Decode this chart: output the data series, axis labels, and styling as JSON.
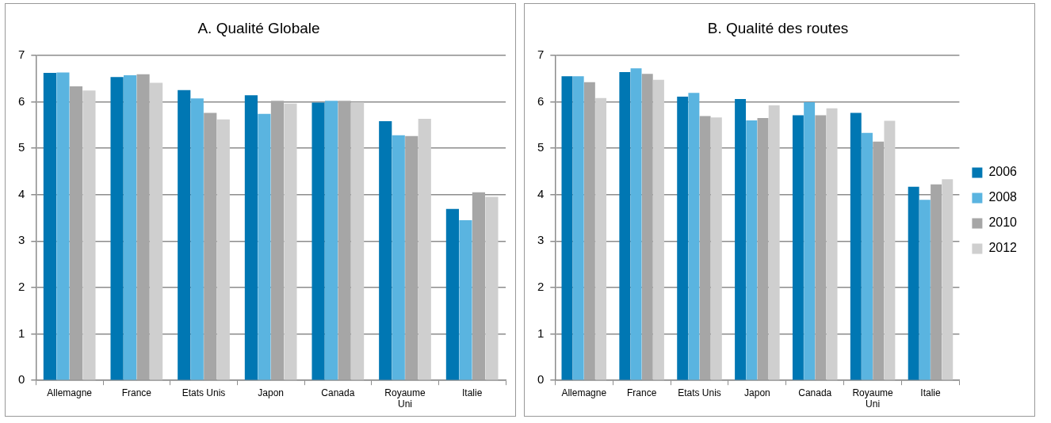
{
  "chart_data": [
    {
      "type": "bar",
      "title": "A. Qualité Globale",
      "categories": [
        "Allemagne",
        "France",
        "Etats Unis",
        "Japon",
        "Canada",
        "Royaume Uni",
        "Italie"
      ],
      "series": [
        {
          "color": "#0077b3",
          "values": [
            6.62,
            6.53,
            6.25,
            6.14,
            5.98,
            5.58,
            3.69
          ]
        },
        {
          "color": "#5ab4e0",
          "values": [
            6.63,
            6.57,
            6.07,
            5.74,
            6.02,
            5.28,
            3.45
          ]
        },
        {
          "color": "#a6a6a6",
          "values": [
            6.33,
            6.59,
            5.76,
            6.02,
            6.02,
            5.26,
            4.05
          ]
        },
        {
          "color": "#cfcfcf",
          "values": [
            6.24,
            6.41,
            5.62,
            5.96,
            5.99,
            5.63,
            3.95
          ]
        }
      ],
      "ylim": [
        0,
        7
      ],
      "yticks": [
        0,
        1,
        2,
        3,
        4,
        5,
        6,
        7
      ],
      "grid": "y",
      "legend": false
    },
    {
      "type": "bar",
      "title": "B. Qualité des routes",
      "categories": [
        "Allemagne",
        "France",
        "Etats Unis",
        "Japon",
        "Canada",
        "Royaume Uni",
        "Italie"
      ],
      "series": [
        {
          "name": "2006",
          "color": "#0077b3",
          "values": [
            6.55,
            6.64,
            6.11,
            6.06,
            5.71,
            5.76,
            4.17
          ]
        },
        {
          "name": "2008",
          "color": "#5ab4e0",
          "values": [
            6.55,
            6.72,
            6.19,
            5.6,
            5.99,
            5.33,
            3.89
          ]
        },
        {
          "name": "2010",
          "color": "#a6a6a6",
          "values": [
            6.42,
            6.6,
            5.69,
            5.65,
            5.71,
            5.14,
            4.22
          ]
        },
        {
          "name": "2012",
          "color": "#cfcfcf",
          "values": [
            6.08,
            6.47,
            5.66,
            5.92,
            5.86,
            5.59,
            4.33
          ]
        }
      ],
      "ylim": [
        0,
        7
      ],
      "yticks": [
        0,
        1,
        2,
        3,
        4,
        5,
        6,
        7
      ],
      "grid": "y",
      "legend": "right"
    }
  ]
}
